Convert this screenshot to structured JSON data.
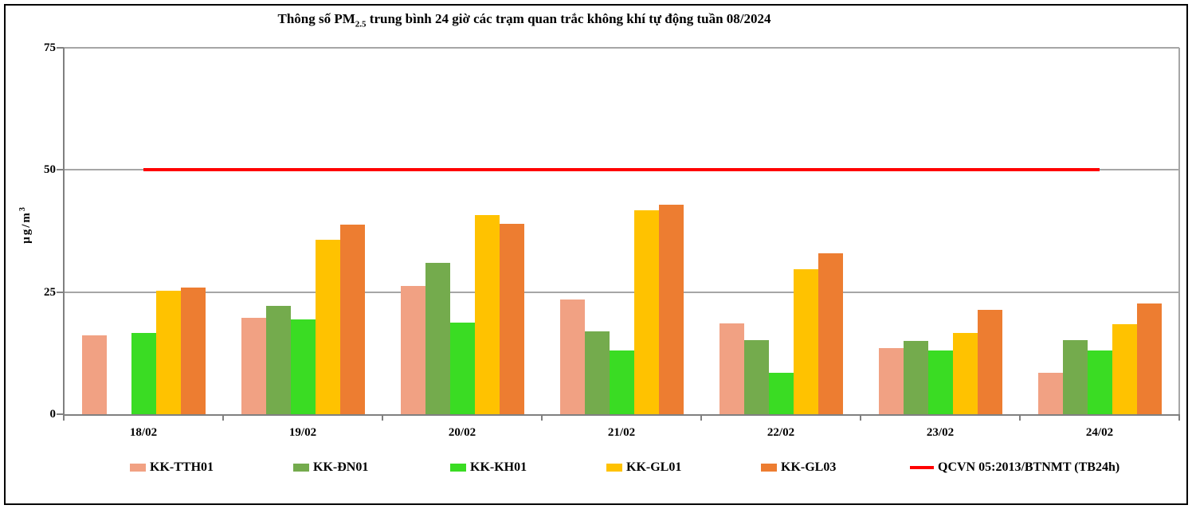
{
  "chart_data": {
    "type": "bar",
    "title": "Thông số PM2.5 trung bình 24 giờ các trạm quan trắc không khí tự động tuần 08/2024",
    "title_parts": {
      "pre": "Thông số PM",
      "sub": "2.5",
      "post": " trung bình 24 giờ các trạm quan trắc không khí tự động tuần 08/2024"
    },
    "ylabel": "µg/m3",
    "ylabel_parts": {
      "main": "µg/m",
      "sup": "3"
    },
    "xlabel": "",
    "ylim": [
      0,
      75
    ],
    "yticks": [
      0,
      25,
      50,
      75
    ],
    "grid": true,
    "legend_position": "bottom",
    "categories": [
      "18/02",
      "19/02",
      "20/02",
      "21/02",
      "22/02",
      "23/02",
      "24/02"
    ],
    "series": [
      {
        "name": "KK-TTH01",
        "type": "bar",
        "color": "#F1A183",
        "values": [
          16.1,
          19.7,
          26.2,
          23.5,
          18.6,
          13.5,
          8.5
        ]
      },
      {
        "name": "KK-ĐN01",
        "type": "bar",
        "color": "#74AB4D",
        "values": [
          null,
          22.2,
          31.0,
          17.0,
          15.2,
          15.0,
          15.2
        ]
      },
      {
        "name": "KK-KH01",
        "type": "bar",
        "color": "#3ADC23",
        "values": [
          16.6,
          19.4,
          18.8,
          13.0,
          8.4,
          13.0,
          13.0
        ]
      },
      {
        "name": "KK-GL01",
        "type": "bar",
        "color": "#FFC200",
        "values": [
          25.3,
          35.7,
          40.7,
          41.7,
          29.7,
          16.7,
          18.5
        ]
      },
      {
        "name": "KK-GL03",
        "type": "bar",
        "color": "#ED7D31",
        "values": [
          26.0,
          38.8,
          39.0,
          42.8,
          33.0,
          21.3,
          22.6
        ]
      },
      {
        "name": "QCVN 05:2013/BTNMT (TB24h)",
        "type": "line",
        "color": "#FF0000",
        "value": 50
      }
    ]
  },
  "colors": {
    "gridline": "#A6A6A6",
    "axis": "#808080",
    "limit_line": "#FF0000",
    "frame_border": "#000000",
    "background": "#FFFFFF"
  }
}
